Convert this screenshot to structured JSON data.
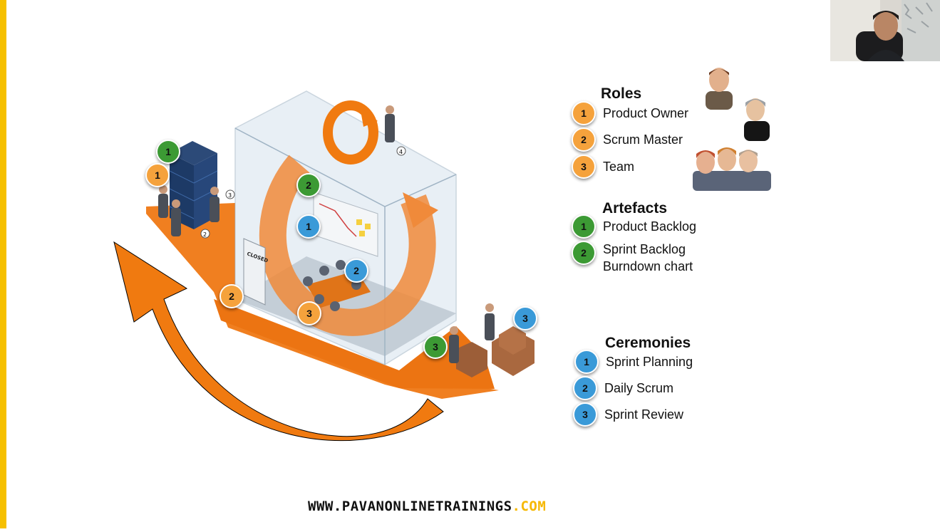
{
  "roles": {
    "title": "Roles",
    "items": [
      {
        "num": "1",
        "label": "Product Owner"
      },
      {
        "num": "2",
        "label": "Scrum Master"
      },
      {
        "num": "3",
        "label": "Team"
      }
    ]
  },
  "artefacts": {
    "title": "Artefacts",
    "items": [
      {
        "num": "1",
        "label": "Product Backlog"
      },
      {
        "num": "2",
        "label": "Sprint Backlog",
        "label2": "Burndown chart"
      }
    ]
  },
  "ceremonies": {
    "title": "Ceremonies",
    "items": [
      {
        "num": "1",
        "label": "Sprint Planning"
      },
      {
        "num": "2",
        "label": "Daily Scrum"
      },
      {
        "num": "3",
        "label": "Sprint Review"
      }
    ]
  },
  "diagram": {
    "badges": [
      {
        "num": "1",
        "color": "green"
      },
      {
        "num": "1",
        "color": "orange"
      },
      {
        "num": "2",
        "color": "green"
      },
      {
        "num": "1",
        "color": "blue"
      },
      {
        "num": "2",
        "color": "blue"
      },
      {
        "num": "2",
        "color": "orange"
      },
      {
        "num": "3",
        "color": "orange"
      },
      {
        "num": "3",
        "color": "green"
      },
      {
        "num": "3",
        "color": "blue"
      }
    ],
    "door_sign": "CLOSED",
    "small_marks": [
      "3",
      "2",
      "4"
    ]
  },
  "footer": {
    "url_main": "WWW.PAVANONLINETRAININGS",
    "url_tld": ".COM"
  },
  "colors": {
    "accent_orange": "#f07a10",
    "badge_orange": "#f5a23c",
    "badge_green": "#3c9a34",
    "badge_blue": "#3a9ad8",
    "left_bar": "#f6c000"
  }
}
